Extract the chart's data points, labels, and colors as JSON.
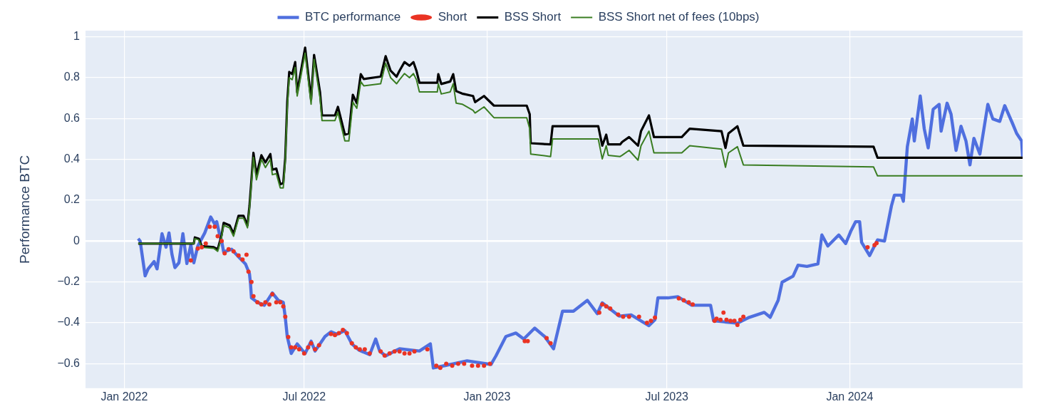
{
  "chart_data": {
    "type": "line",
    "ylabel": "Performance BTC",
    "xlim": [
      "2021-11-23",
      "2024-06-23"
    ],
    "ylim": [
      -0.72,
      1.03
    ],
    "xticks": [
      {
        "value": "2022-01-01",
        "label": "Jan 2022"
      },
      {
        "value": "2022-07-01",
        "label": "Jul 2022"
      },
      {
        "value": "2023-01-01",
        "label": "Jan 2023"
      },
      {
        "value": "2023-07-01",
        "label": "Jul 2023"
      },
      {
        "value": "2024-01-01",
        "label": "Jan 2024"
      }
    ],
    "yticks": [
      {
        "value": -0.6,
        "label": "−0.6"
      },
      {
        "value": -0.4,
        "label": "−0.4"
      },
      {
        "value": -0.2,
        "label": "−0.2"
      },
      0,
      0.2,
      0.4,
      0.6,
      0.8,
      1
    ],
    "grid": true,
    "legend": "top",
    "series": [
      {
        "name": "BTC performance",
        "type": "line",
        "marker": "none",
        "color": "#4f6fdf",
        "x": [
          "2022-01-15",
          "2022-01-17",
          "2022-01-22",
          "2022-01-25",
          "2022-01-31",
          "2022-02-03",
          "2022-02-08",
          "2022-02-12",
          "2022-02-15",
          "2022-02-18",
          "2022-02-21",
          "2022-02-25",
          "2022-03-01",
          "2022-03-05",
          "2022-03-09",
          "2022-03-12",
          "2022-03-16",
          "2022-03-23",
          "2022-03-29",
          "2022-04-02",
          "2022-04-04",
          "2022-04-07",
          "2022-04-09",
          "2022-04-11",
          "2022-04-19",
          "2022-04-26",
          "2022-05-03",
          "2022-05-07",
          "2022-05-08",
          "2022-05-09",
          "2022-05-15",
          "2022-05-22",
          "2022-05-30",
          "2022-06-05",
          "2022-06-10",
          "2022-06-12",
          "2022-06-14",
          "2022-06-18",
          "2022-06-24",
          "2022-07-02",
          "2022-07-08",
          "2022-07-12",
          "2022-07-17",
          "2022-07-22",
          "2022-07-28",
          "2022-08-03",
          "2022-08-11",
          "2022-08-18",
          "2022-08-25",
          "2022-09-05",
          "2022-09-11",
          "2022-09-15",
          "2022-09-21",
          "2022-09-28",
          "2022-10-05",
          "2022-10-25",
          "2022-11-05",
          "2022-11-08",
          "2022-11-20",
          "2022-12-12",
          "2023-01-05",
          "2023-01-10",
          "2023-01-20",
          "2023-01-30",
          "2023-02-07",
          "2023-02-18",
          "2023-02-28",
          "2023-03-09",
          "2023-03-18",
          "2023-03-29",
          "2023-04-12",
          "2023-04-22",
          "2023-04-27",
          "2023-05-14",
          "2023-05-26",
          "2023-06-13",
          "2023-06-19",
          "2023-06-22",
          "2023-07-02",
          "2023-07-12",
          "2023-07-26",
          "2023-08-14",
          "2023-08-17",
          "2023-09-10",
          "2023-09-22",
          "2023-10-07",
          "2023-10-13",
          "2023-10-21",
          "2023-10-25",
          "2023-11-05",
          "2023-11-10",
          "2023-11-19",
          "2023-11-30",
          "2023-12-04",
          "2023-12-10",
          "2023-12-21",
          "2023-12-28",
          "2024-01-02",
          "2024-01-07",
          "2024-01-11",
          "2024-01-13",
          "2024-01-21",
          "2024-01-29",
          "2024-02-05",
          "2024-02-12",
          "2024-02-15",
          "2024-02-22",
          "2024-02-24",
          "2024-02-28",
          "2024-03-04",
          "2024-03-06",
          "2024-03-12",
          "2024-03-16",
          "2024-03-20",
          "2024-03-25",
          "2024-03-31",
          "2024-04-02",
          "2024-04-08",
          "2024-04-12",
          "2024-04-17",
          "2024-04-22",
          "2024-04-27",
          "2024-05-01",
          "2024-05-05",
          "2024-05-11",
          "2024-05-19",
          "2024-05-24",
          "2024-05-31",
          "2024-06-05",
          "2024-06-13",
          "2024-06-17",
          "2024-06-22",
          "2024-06-23"
        ],
        "values": [
          0.012,
          0,
          -0.17,
          -0.136,
          -0.1,
          -0.136,
          0.036,
          -0.03,
          0.04,
          -0.065,
          -0.13,
          -0.106,
          0.036,
          -0.11,
          -0.018,
          -0.106,
          -0.024,
          0.04,
          0.118,
          0.083,
          0.095,
          0.03,
          0,
          -0.053,
          -0.04,
          -0.077,
          -0.112,
          -0.16,
          -0.207,
          -0.278,
          -0.3,
          -0.314,
          -0.254,
          -0.29,
          -0.3,
          -0.373,
          -0.467,
          -0.55,
          -0.503,
          -0.55,
          -0.49,
          -0.538,
          -0.503,
          -0.467,
          -0.444,
          -0.456,
          -0.438,
          -0.503,
          -0.533,
          -0.556,
          -0.479,
          -0.538,
          -0.562,
          -0.544,
          -0.527,
          -0.538,
          -0.503,
          -0.621,
          -0.609,
          -0.586,
          -0.604,
          -0.562,
          -0.467,
          -0.45,
          -0.479,
          -0.426,
          -0.467,
          -0.527,
          -0.343,
          -0.343,
          -0.29,
          -0.355,
          -0.302,
          -0.367,
          -0.361,
          -0.414,
          -0.385,
          -0.278,
          -0.278,
          -0.272,
          -0.314,
          -0.314,
          -0.39,
          -0.402,
          -0.373,
          -0.349,
          -0.373,
          -0.29,
          -0.201,
          -0.172,
          -0.118,
          -0.124,
          -0.112,
          0.03,
          -0.024,
          0.03,
          -0.012,
          0.047,
          0.095,
          0.095,
          -0.006,
          -0.071,
          0.006,
          0,
          0.172,
          0.225,
          0.225,
          0.195,
          0.462,
          0.598,
          0.49,
          0.71,
          0.55,
          0.456,
          0.645,
          0.669,
          0.538,
          0.675,
          0.621,
          0.444,
          0.562,
          0.49,
          0.373,
          0.503,
          0.426,
          0.669,
          0.598,
          0.586,
          0.663,
          0.574,
          0.527,
          0.49,
          0.414
        ]
      },
      {
        "name": "Short",
        "type": "scatter",
        "marker": "circle",
        "color": "#ea3323",
        "x": [
          "2022-03-09",
          "2022-03-16",
          "2022-03-20",
          "2022-03-24",
          "2022-03-28",
          "2022-04-02",
          "2022-04-05",
          "2022-04-09",
          "2022-04-12",
          "2022-04-16",
          "2022-04-21",
          "2022-04-26",
          "2022-04-30",
          "2022-05-04",
          "2022-05-06",
          "2022-05-09",
          "2022-05-11",
          "2022-05-15",
          "2022-05-19",
          "2022-05-23",
          "2022-05-27",
          "2022-05-30",
          "2022-06-03",
          "2022-06-07",
          "2022-06-10",
          "2022-06-12",
          "2022-06-15",
          "2022-06-18",
          "2022-06-22",
          "2022-06-26",
          "2022-07-01",
          "2022-07-05",
          "2022-07-08",
          "2022-07-12",
          "2022-07-16",
          "2022-07-28",
          "2022-08-01",
          "2022-08-05",
          "2022-08-09",
          "2022-08-13",
          "2022-08-18",
          "2022-08-22",
          "2022-08-26",
          "2022-08-31",
          "2022-09-05",
          "2022-09-16",
          "2022-09-20",
          "2022-09-25",
          "2022-09-30",
          "2022-10-05",
          "2022-10-10",
          "2022-10-15",
          "2022-10-20",
          "2022-11-02",
          "2022-11-11",
          "2022-11-15",
          "2022-11-21",
          "2022-11-27",
          "2022-12-03",
          "2022-12-09",
          "2022-12-17",
          "2022-12-23",
          "2022-12-29",
          "2023-01-04",
          "2023-02-08",
          "2023-02-11",
          "2023-03-02",
          "2023-03-06",
          "2023-04-24",
          "2023-04-27",
          "2023-05-01",
          "2023-05-05",
          "2023-05-13",
          "2023-05-18",
          "2023-05-24",
          "2023-06-03",
          "2023-06-11",
          "2023-06-15",
          "2023-06-19",
          "2023-07-13",
          "2023-07-18",
          "2023-07-23",
          "2023-07-27",
          "2023-08-18",
          "2023-08-20",
          "2023-08-24",
          "2023-08-27",
          "2023-08-30",
          "2023-09-03",
          "2023-09-07",
          "2023-09-10",
          "2023-09-13",
          "2023-09-16",
          "2024-01-19",
          "2024-01-26",
          "2024-01-28"
        ],
        "values": [
          -0.095,
          -0.036,
          -0.03,
          -0.012,
          0.07,
          0.07,
          0.024,
          0,
          -0.06,
          -0.04,
          -0.05,
          -0.07,
          -0.09,
          -0.067,
          -0.15,
          -0.2,
          -0.27,
          -0.3,
          -0.31,
          -0.3,
          -0.31,
          -0.26,
          -0.3,
          -0.3,
          -0.32,
          -0.37,
          -0.47,
          -0.52,
          -0.52,
          -0.53,
          -0.55,
          -0.52,
          -0.5,
          -0.53,
          -0.51,
          -0.455,
          -0.46,
          -0.45,
          -0.435,
          -0.45,
          -0.5,
          -0.52,
          -0.53,
          -0.53,
          -0.55,
          -0.54,
          -0.56,
          -0.55,
          -0.54,
          -0.54,
          -0.55,
          -0.55,
          -0.54,
          -0.53,
          -0.61,
          -0.62,
          -0.6,
          -0.61,
          -0.6,
          -0.6,
          -0.61,
          -0.61,
          -0.61,
          -0.6,
          -0.49,
          -0.49,
          -0.475,
          -0.5,
          -0.35,
          -0.31,
          -0.32,
          -0.33,
          -0.36,
          -0.37,
          -0.37,
          -0.37,
          -0.4,
          -0.39,
          -0.375,
          -0.28,
          -0.29,
          -0.3,
          -0.31,
          -0.39,
          -0.38,
          -0.385,
          -0.35,
          -0.385,
          -0.39,
          -0.39,
          -0.41,
          -0.385,
          -0.37,
          -0.03,
          -0.02,
          -0.01
        ]
      },
      {
        "name": "BSS Short",
        "type": "line",
        "marker": "none",
        "color": "#000000",
        "x": [
          "2022-01-15",
          "2022-03-12",
          "2022-03-13",
          "2022-03-17",
          "2022-03-20",
          "2022-04-01",
          "2022-04-05",
          "2022-04-09",
          "2022-04-11",
          "2022-04-17",
          "2022-04-21",
          "2022-04-26",
          "2022-05-01",
          "2022-05-05",
          "2022-05-07",
          "2022-05-11",
          "2022-05-14",
          "2022-05-19",
          "2022-05-23",
          "2022-05-28",
          "2022-05-30",
          "2022-06-03",
          "2022-06-07",
          "2022-06-10",
          "2022-06-12",
          "2022-06-14",
          "2022-06-16",
          "2022-06-19",
          "2022-06-22",
          "2022-06-24",
          "2022-07-02",
          "2022-07-08",
          "2022-07-11",
          "2022-07-17",
          "2022-07-19",
          "2022-08-01",
          "2022-08-04",
          "2022-08-11",
          "2022-08-15",
          "2022-08-19",
          "2022-08-23",
          "2022-08-27",
          "2022-08-30",
          "2022-09-16",
          "2022-09-21",
          "2022-09-26",
          "2022-10-02",
          "2022-10-05",
          "2022-10-10",
          "2022-10-15",
          "2022-10-19",
          "2022-10-22",
          "2022-10-25",
          "2022-11-12",
          "2022-11-13",
          "2022-11-16",
          "2022-11-25",
          "2022-11-28",
          "2022-12-01",
          "2022-12-07",
          "2022-12-18",
          "2022-12-20",
          "2022-12-29",
          "2023-01-08",
          "2023-02-10",
          "2023-02-13",
          "2023-02-14",
          "2023-03-06",
          "2023-03-08",
          "2023-04-23",
          "2023-04-27",
          "2023-05-01",
          "2023-05-03",
          "2023-05-15",
          "2023-05-17",
          "2023-05-24",
          "2023-06-02",
          "2023-06-05",
          "2023-06-13",
          "2023-06-18",
          "2023-07-16",
          "2023-07-24",
          "2023-08-25",
          "2023-08-29",
          "2023-09-01",
          "2023-09-10",
          "2023-09-16",
          "2024-01-25",
          "2024-01-29",
          "2024-06-23"
        ],
        "values": [
          -0.012,
          -0.012,
          0.018,
          0.012,
          -0.024,
          -0.03,
          -0.04,
          0.03,
          0.089,
          0.077,
          0.036,
          0.124,
          0.124,
          0.077,
          0.172,
          0.432,
          0.325,
          0.42,
          0.385,
          0.426,
          0.349,
          0.355,
          0.278,
          0.284,
          0.408,
          0.68,
          0.828,
          0.817,
          0.876,
          0.728,
          0.947,
          0.692,
          0.911,
          0.728,
          0.615,
          0.615,
          0.657,
          0.521,
          0.527,
          0.716,
          0.675,
          0.817,
          0.793,
          0.805,
          0.905,
          0.834,
          0.805,
          0.834,
          0.876,
          0.858,
          0.876,
          0.834,
          0.775,
          0.775,
          0.817,
          0.769,
          0.781,
          0.817,
          0.734,
          0.722,
          0.71,
          0.68,
          0.71,
          0.663,
          0.663,
          0.621,
          0.479,
          0.473,
          0.562,
          0.562,
          0.467,
          0.521,
          0.473,
          0.473,
          0.485,
          0.509,
          0.467,
          0.538,
          0.615,
          0.509,
          0.509,
          0.55,
          0.538,
          0.456,
          0.527,
          0.562,
          0.467,
          0.462,
          0.408,
          0.408
        ]
      },
      {
        "name": "BSS Short net of fees (10bps)",
        "type": "line",
        "marker": "none",
        "color": "#3a7d22",
        "x": [
          "2022-01-15",
          "2022-03-12",
          "2022-03-13",
          "2022-03-17",
          "2022-03-20",
          "2022-04-01",
          "2022-04-05",
          "2022-04-09",
          "2022-04-11",
          "2022-04-17",
          "2022-04-21",
          "2022-04-26",
          "2022-05-01",
          "2022-05-05",
          "2022-05-07",
          "2022-05-11",
          "2022-05-14",
          "2022-05-19",
          "2022-05-23",
          "2022-05-28",
          "2022-05-30",
          "2022-06-03",
          "2022-06-07",
          "2022-06-10",
          "2022-06-12",
          "2022-06-14",
          "2022-06-16",
          "2022-06-19",
          "2022-06-22",
          "2022-06-24",
          "2022-07-02",
          "2022-07-08",
          "2022-07-11",
          "2022-07-17",
          "2022-07-19",
          "2022-08-01",
          "2022-08-04",
          "2022-08-11",
          "2022-08-15",
          "2022-08-19",
          "2022-08-23",
          "2022-08-27",
          "2022-08-30",
          "2022-09-16",
          "2022-09-21",
          "2022-09-26",
          "2022-10-02",
          "2022-10-05",
          "2022-10-10",
          "2022-10-15",
          "2022-10-19",
          "2022-10-22",
          "2022-10-25",
          "2022-11-12",
          "2022-11-13",
          "2022-11-16",
          "2022-11-25",
          "2022-11-28",
          "2022-12-01",
          "2022-12-07",
          "2022-12-18",
          "2022-12-20",
          "2022-12-29",
          "2023-01-08",
          "2023-02-10",
          "2023-02-13",
          "2023-02-14",
          "2023-03-06",
          "2023-03-08",
          "2023-04-23",
          "2023-04-27",
          "2023-05-01",
          "2023-05-03",
          "2023-05-15",
          "2023-05-17",
          "2023-05-24",
          "2023-06-02",
          "2023-06-05",
          "2023-06-13",
          "2023-06-18",
          "2023-07-16",
          "2023-07-24",
          "2023-08-25",
          "2023-08-29",
          "2023-09-01",
          "2023-09-10",
          "2023-09-16",
          "2024-01-25",
          "2024-01-29",
          "2024-06-23"
        ],
        "values": [
          -0.012,
          -0.012,
          0.012,
          0.006,
          -0.03,
          -0.035,
          -0.05,
          0.024,
          0.077,
          0.065,
          0.024,
          0.112,
          0.112,
          0.065,
          0.16,
          0.41,
          0.3,
          0.4,
          0.36,
          0.4,
          0.325,
          0.33,
          0.26,
          0.26,
          0.39,
          0.65,
          0.8,
          0.79,
          0.85,
          0.71,
          0.92,
          0.67,
          0.89,
          0.7,
          0.59,
          0.59,
          0.63,
          0.49,
          0.49,
          0.68,
          0.65,
          0.78,
          0.76,
          0.77,
          0.87,
          0.8,
          0.77,
          0.79,
          0.82,
          0.8,
          0.82,
          0.79,
          0.73,
          0.73,
          0.77,
          0.72,
          0.73,
          0.77,
          0.675,
          0.67,
          0.64,
          0.627,
          0.657,
          0.604,
          0.604,
          0.55,
          0.426,
          0.414,
          0.5,
          0.5,
          0.402,
          0.467,
          0.42,
          0.414,
          0.42,
          0.444,
          0.396,
          0.467,
          0.538,
          0.432,
          0.432,
          0.467,
          0.45,
          0.361,
          0.432,
          0.462,
          0.373,
          0.363,
          0.319,
          0.319
        ]
      }
    ]
  }
}
